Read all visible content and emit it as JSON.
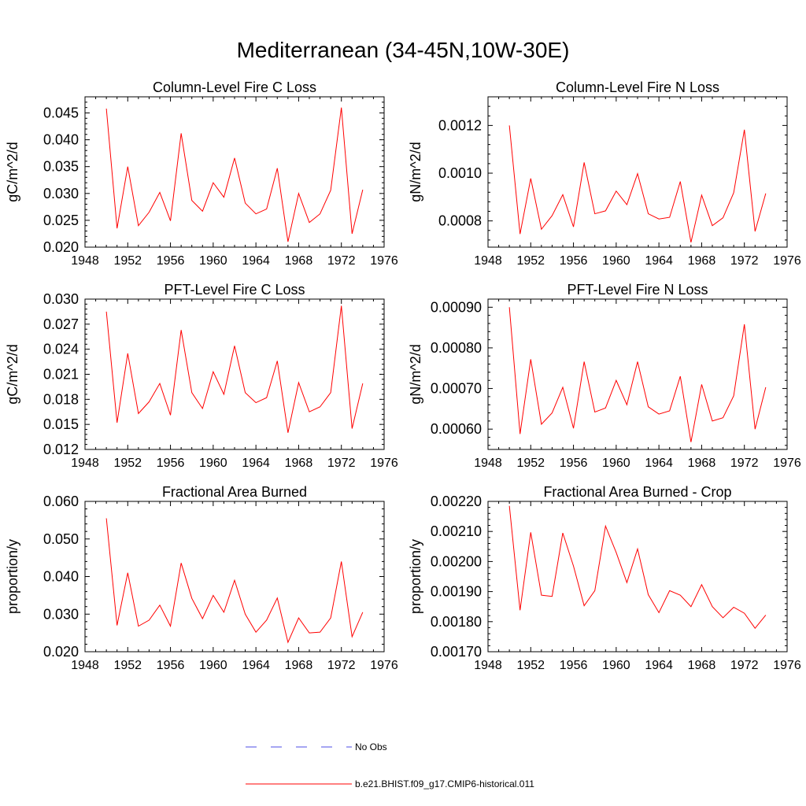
{
  "figure": {
    "title": "Mediterranean (34-45N,10W-30E)"
  },
  "legend": {
    "entries": [
      {
        "label": "No Obs",
        "color": "#4c4ce6",
        "dash": true
      },
      {
        "label": "b.e21.BHIST.f09_g17.CMIP6-historical.011",
        "color": "#ff0000",
        "dash": false
      }
    ]
  },
  "chart_data": [
    {
      "type": "line",
      "title": "Column-Level Fire C Loss",
      "ylabel": "gC/m^2/d",
      "xlim": [
        1948,
        1976
      ],
      "x_ticks": [
        "1948",
        "1952",
        "1956",
        "1960",
        "1964",
        "1968",
        "1972",
        "1976"
      ],
      "ylim": [
        0.02,
        0.048
      ],
      "y_ticks": [
        "0.020",
        "0.025",
        "0.030",
        "0.035",
        "0.040",
        "0.045"
      ],
      "x": [
        1950,
        1951,
        1952,
        1953,
        1954,
        1955,
        1956,
        1957,
        1958,
        1959,
        1960,
        1961,
        1962,
        1963,
        1964,
        1965,
        1966,
        1967,
        1968,
        1969,
        1970,
        1971,
        1972,
        1973,
        1974
      ],
      "series": [
        {
          "name": "b.e21.BHIST.f09_g17.CMIP6-historical.011",
          "color": "#ff0000",
          "values": [
            0.0458,
            0.0235,
            0.035,
            0.024,
            0.0265,
            0.0302,
            0.0249,
            0.0412,
            0.0287,
            0.0267,
            0.032,
            0.0293,
            0.0366,
            0.0282,
            0.0262,
            0.0271,
            0.0347,
            0.021,
            0.03,
            0.0246,
            0.0262,
            0.0306,
            0.046,
            0.0225,
            0.0307
          ]
        }
      ]
    },
    {
      "type": "line",
      "title": "Column-Level Fire N Loss",
      "ylabel": "gN/m^2/d",
      "xlim": [
        1948,
        1976
      ],
      "x_ticks": [
        "1948",
        "1952",
        "1956",
        "1960",
        "1964",
        "1968",
        "1972",
        "1976"
      ],
      "ylim": [
        0.00069,
        0.00132
      ],
      "y_ticks": [
        "0.0008",
        "0.0010",
        "0.0012"
      ],
      "x": [
        1950,
        1951,
        1952,
        1953,
        1954,
        1955,
        1956,
        1957,
        1958,
        1959,
        1960,
        1961,
        1962,
        1963,
        1964,
        1965,
        1966,
        1967,
        1968,
        1969,
        1970,
        1971,
        1972,
        1973,
        1974
      ],
      "series": [
        {
          "name": "b.e21.BHIST.f09_g17.CMIP6-historical.011",
          "color": "#ff0000",
          "values": [
            0.0012,
            0.000745,
            0.000978,
            0.000765,
            0.000822,
            0.00091,
            0.000775,
            0.001045,
            0.00083,
            0.000842,
            0.000925,
            0.000868,
            0.000998,
            0.00083,
            0.000808,
            0.000815,
            0.000965,
            0.00071,
            0.000908,
            0.00078,
            0.000813,
            0.000918,
            0.001182,
            0.000756,
            0.000915
          ]
        }
      ]
    },
    {
      "type": "line",
      "title": "PFT-Level Fire C Loss",
      "ylabel": "gC/m^2/d",
      "xlim": [
        1948,
        1976
      ],
      "x_ticks": [
        "1948",
        "1952",
        "1956",
        "1960",
        "1964",
        "1968",
        "1972",
        "1976"
      ],
      "ylim": [
        0.012,
        0.03
      ],
      "y_ticks": [
        "0.012",
        "0.015",
        "0.018",
        "0.021",
        "0.024",
        "0.027",
        "0.030"
      ],
      "x": [
        1950,
        1951,
        1952,
        1953,
        1954,
        1955,
        1956,
        1957,
        1958,
        1959,
        1960,
        1961,
        1962,
        1963,
        1964,
        1965,
        1966,
        1967,
        1968,
        1969,
        1970,
        1971,
        1972,
        1973,
        1974
      ],
      "series": [
        {
          "name": "b.e21.BHIST.f09_g17.CMIP6-historical.011",
          "color": "#ff0000",
          "values": [
            0.0285,
            0.0152,
            0.0235,
            0.0163,
            0.0177,
            0.0199,
            0.0161,
            0.0263,
            0.0188,
            0.0169,
            0.0213,
            0.0186,
            0.0244,
            0.0188,
            0.0176,
            0.0182,
            0.0226,
            0.014,
            0.02,
            0.0165,
            0.0171,
            0.0188,
            0.0292,
            0.0145,
            0.0199
          ]
        }
      ]
    },
    {
      "type": "line",
      "title": "PFT-Level Fire N Loss",
      "ylabel": "gN/m^2/d",
      "xlim": [
        1948,
        1976
      ],
      "x_ticks": [
        "1948",
        "1952",
        "1956",
        "1960",
        "1964",
        "1968",
        "1972",
        "1976"
      ],
      "ylim": [
        0.00055,
        0.00092
      ],
      "y_ticks": [
        "0.00060",
        "0.00070",
        "0.00080",
        "0.00090"
      ],
      "x": [
        1950,
        1951,
        1952,
        1953,
        1954,
        1955,
        1956,
        1957,
        1958,
        1959,
        1960,
        1961,
        1962,
        1963,
        1964,
        1965,
        1966,
        1967,
        1968,
        1969,
        1970,
        1971,
        1972,
        1973,
        1974
      ],
      "series": [
        {
          "name": "b.e21.BHIST.f09_g17.CMIP6-historical.011",
          "color": "#ff0000",
          "values": [
            0.0009,
            0.000588,
            0.000772,
            0.000612,
            0.00064,
            0.000703,
            0.000602,
            0.000766,
            0.000642,
            0.000652,
            0.00072,
            0.00066,
            0.000766,
            0.000655,
            0.000637,
            0.000645,
            0.00073,
            0.000568,
            0.00071,
            0.00062,
            0.000628,
            0.000682,
            0.000858,
            0.0006,
            0.000703
          ]
        }
      ]
    },
    {
      "type": "line",
      "title": "Fractional Area Burned",
      "ylabel": "proportion/y",
      "xlim": [
        1948,
        1976
      ],
      "x_ticks": [
        "1948",
        "1952",
        "1956",
        "1960",
        "1964",
        "1968",
        "1972",
        "1976"
      ],
      "ylim": [
        0.02,
        0.06
      ],
      "y_ticks": [
        "0.020",
        "0.030",
        "0.040",
        "0.050",
        "0.060"
      ],
      "x": [
        1950,
        1951,
        1952,
        1953,
        1954,
        1955,
        1956,
        1957,
        1958,
        1959,
        1960,
        1961,
        1962,
        1963,
        1964,
        1965,
        1966,
        1967,
        1968,
        1969,
        1970,
        1971,
        1972,
        1973,
        1974
      ],
      "series": [
        {
          "name": "b.e21.BHIST.f09_g17.CMIP6-historical.011",
          "color": "#ff0000",
          "values": [
            0.0555,
            0.027,
            0.041,
            0.0268,
            0.0284,
            0.0324,
            0.0268,
            0.0436,
            0.0342,
            0.0288,
            0.035,
            0.0305,
            0.039,
            0.03,
            0.0252,
            0.0284,
            0.0343,
            0.0225,
            0.029,
            0.025,
            0.0252,
            0.029,
            0.044,
            0.024,
            0.0305
          ]
        }
      ]
    },
    {
      "type": "line",
      "title": "Fractional Area Burned - Crop",
      "ylabel": "proportion/y",
      "xlim": [
        1948,
        1976
      ],
      "x_ticks": [
        "1948",
        "1952",
        "1956",
        "1960",
        "1964",
        "1968",
        "1972",
        "1976"
      ],
      "ylim": [
        0.0017,
        0.0022
      ],
      "y_ticks": [
        "0.00170",
        "0.00180",
        "0.00190",
        "0.00200",
        "0.00210",
        "0.00220"
      ],
      "x": [
        1950,
        1951,
        1952,
        1953,
        1954,
        1955,
        1956,
        1957,
        1958,
        1959,
        1960,
        1961,
        1962,
        1963,
        1964,
        1965,
        1966,
        1967,
        1968,
        1969,
        1970,
        1971,
        1972,
        1973,
        1974
      ],
      "series": [
        {
          "name": "b.e21.BHIST.f09_g17.CMIP6-historical.011",
          "color": "#ff0000",
          "values": [
            0.002185,
            0.001838,
            0.002097,
            0.001888,
            0.001884,
            0.002095,
            0.001985,
            0.001853,
            0.001903,
            0.002118,
            0.00203,
            0.00193,
            0.002042,
            0.00189,
            0.00183,
            0.001903,
            0.001888,
            0.00185,
            0.001923,
            0.00185,
            0.001813,
            0.001848,
            0.001828,
            0.001778,
            0.001822
          ]
        }
      ]
    }
  ]
}
